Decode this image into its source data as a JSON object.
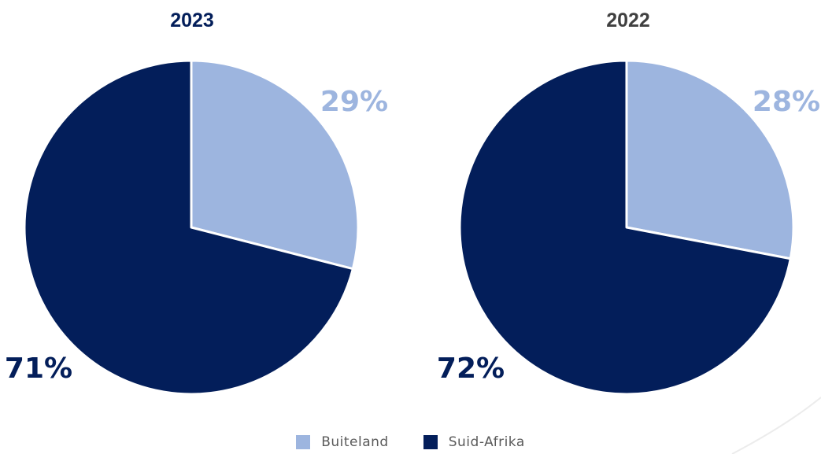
{
  "colors": {
    "buiteland": "#9db5df",
    "suid_afrika": "#031e5a",
    "title_2023": "#031e5a",
    "title_2022": "#404040",
    "legend_text": "#5a5a5a"
  },
  "legend": {
    "items": [
      {
        "label": "Buiteland",
        "color": "#9db5df"
      },
      {
        "label": "Suid-Afrika",
        "color": "#031e5a"
      }
    ]
  },
  "chart_data": [
    {
      "type": "pie",
      "title": "2023",
      "start": "12 o'clock, clockwise",
      "slices": [
        {
          "label": "Buiteland",
          "value": 29,
          "display": "29%",
          "color": "#9db5df"
        },
        {
          "label": "Suid-Afrika",
          "value": 71,
          "display": "71%",
          "color": "#031e5a"
        }
      ],
      "legend_position": "bottom-center"
    },
    {
      "type": "pie",
      "title": "2022",
      "start": "12 o'clock, clockwise",
      "slices": [
        {
          "label": "Buiteland",
          "value": 28,
          "display": "28%",
          "color": "#9db5df"
        },
        {
          "label": "Suid-Afrika",
          "value": 72,
          "display": "72%",
          "color": "#031e5a"
        }
      ],
      "legend_position": "bottom-center"
    }
  ]
}
